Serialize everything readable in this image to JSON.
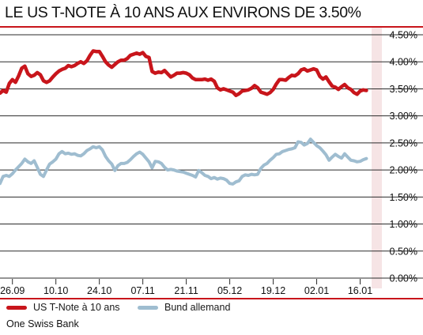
{
  "title": "LE US T-NOTE À 10 ANS AUX ENVIRONS DE 3.50%",
  "source": "One Swiss Bank",
  "colors": {
    "us": "#c8151b",
    "bund": "#9fbdd0",
    "accent_line": "#c8151b",
    "shade": "#f6e4e5",
    "grid": "#2b2b2b"
  },
  "chart_data": {
    "type": "line",
    "title": "LE US T-NOTE À 10 ANS AUX ENVIRONS DE 3.50%",
    "xlabel": "",
    "ylabel": "",
    "x_tick_labels": [
      "26.09",
      "10.10",
      "24.10",
      "07.11",
      "21.11",
      "05.12",
      "19.12",
      "02.01",
      "16.01"
    ],
    "y_tick_labels": [
      "4.50%",
      "4.00%",
      "3.50%",
      "3.00%",
      "2.50%",
      "2.00%",
      "1.50%",
      "1.00%",
      "0.50%",
      "0.00%"
    ],
    "y_ticks": [
      4.5,
      4.0,
      3.5,
      3.0,
      2.5,
      2.0,
      1.5,
      1.0,
      0.5,
      0.0
    ],
    "ylim": [
      0,
      4.5
    ],
    "x_dates": [
      "2022-09-22",
      "2023-01-23"
    ],
    "x_tick_dates": [
      "2022-09-26",
      "2022-10-10",
      "2022-10-24",
      "2022-11-07",
      "2022-11-21",
      "2022-12-05",
      "2022-12-19",
      "2023-01-02",
      "2023-01-16"
    ],
    "grid": true,
    "legend_position": "bottom-left",
    "series": [
      {
        "name": "US T-Note à 10 ans",
        "color": "#c8151b",
        "points": [
          [
            "2022-09-22",
            3.42
          ],
          [
            "2022-09-23",
            3.47
          ],
          [
            "2022-09-24",
            3.44
          ],
          [
            "2022-09-25",
            3.6
          ],
          [
            "2022-09-26",
            3.67
          ],
          [
            "2022-09-27",
            3.62
          ],
          [
            "2022-09-28",
            3.74
          ],
          [
            "2022-09-29",
            3.88
          ],
          [
            "2022-09-30",
            3.92
          ],
          [
            "2022-10-01",
            3.78
          ],
          [
            "2022-10-02",
            3.73
          ],
          [
            "2022-10-03",
            3.75
          ],
          [
            "2022-10-04",
            3.8
          ],
          [
            "2022-10-05",
            3.76
          ],
          [
            "2022-10-06",
            3.65
          ],
          [
            "2022-10-07",
            3.62
          ],
          [
            "2022-10-08",
            3.65
          ],
          [
            "2022-10-09",
            3.72
          ],
          [
            "2022-10-10",
            3.78
          ],
          [
            "2022-10-11",
            3.83
          ],
          [
            "2022-10-12",
            3.86
          ],
          [
            "2022-10-13",
            3.88
          ],
          [
            "2022-10-14",
            3.93
          ],
          [
            "2022-10-15",
            3.91
          ],
          [
            "2022-10-16",
            3.93
          ],
          [
            "2022-10-17",
            3.97
          ],
          [
            "2022-10-18",
            4.0
          ],
          [
            "2022-10-19",
            3.97
          ],
          [
            "2022-10-20",
            4.02
          ],
          [
            "2022-10-21",
            4.12
          ],
          [
            "2022-10-22",
            4.2
          ],
          [
            "2022-10-23",
            4.19
          ],
          [
            "2022-10-24",
            4.19
          ],
          [
            "2022-10-25",
            4.1
          ],
          [
            "2022-10-26",
            4.0
          ],
          [
            "2022-10-27",
            3.94
          ],
          [
            "2022-10-28",
            3.9
          ],
          [
            "2022-10-29",
            3.95
          ],
          [
            "2022-10-30",
            4.0
          ],
          [
            "2022-10-31",
            4.03
          ],
          [
            "2022-11-01",
            4.03
          ],
          [
            "2022-11-02",
            4.06
          ],
          [
            "2022-11-03",
            4.12
          ],
          [
            "2022-11-04",
            4.14
          ],
          [
            "2022-11-05",
            4.16
          ],
          [
            "2022-11-06",
            4.14
          ],
          [
            "2022-11-07",
            4.17
          ],
          [
            "2022-11-08",
            4.1
          ],
          [
            "2022-11-09",
            4.08
          ],
          [
            "2022-11-10",
            3.82
          ],
          [
            "2022-11-11",
            3.79
          ],
          [
            "2022-11-12",
            3.81
          ],
          [
            "2022-11-13",
            3.8
          ],
          [
            "2022-11-14",
            3.84
          ],
          [
            "2022-11-15",
            3.78
          ],
          [
            "2022-11-16",
            3.72
          ],
          [
            "2022-11-17",
            3.75
          ],
          [
            "2022-11-18",
            3.79
          ],
          [
            "2022-11-19",
            3.79
          ],
          [
            "2022-11-20",
            3.8
          ],
          [
            "2022-11-21",
            3.79
          ],
          [
            "2022-11-22",
            3.76
          ],
          [
            "2022-11-23",
            3.7
          ],
          [
            "2022-11-24",
            3.67
          ],
          [
            "2022-11-25",
            3.67
          ],
          [
            "2022-11-26",
            3.67
          ],
          [
            "2022-11-27",
            3.68
          ],
          [
            "2022-11-28",
            3.66
          ],
          [
            "2022-11-29",
            3.68
          ],
          [
            "2022-11-30",
            3.64
          ],
          [
            "2022-12-01",
            3.52
          ],
          [
            "2022-12-02",
            3.48
          ],
          [
            "2022-12-03",
            3.5
          ],
          [
            "2022-12-04",
            3.48
          ],
          [
            "2022-12-05",
            3.46
          ],
          [
            "2022-12-06",
            3.44
          ],
          [
            "2022-12-07",
            3.38
          ],
          [
            "2022-12-08",
            3.41
          ],
          [
            "2022-12-09",
            3.46
          ],
          [
            "2022-12-10",
            3.47
          ],
          [
            "2022-12-11",
            3.48
          ],
          [
            "2022-12-12",
            3.51
          ],
          [
            "2022-12-13",
            3.56
          ],
          [
            "2022-12-14",
            3.52
          ],
          [
            "2022-12-15",
            3.44
          ],
          [
            "2022-12-16",
            3.42
          ],
          [
            "2022-12-17",
            3.4
          ],
          [
            "2022-12-18",
            3.43
          ],
          [
            "2022-12-19",
            3.49
          ],
          [
            "2022-12-20",
            3.59
          ],
          [
            "2022-12-21",
            3.67
          ],
          [
            "2022-12-22",
            3.67
          ],
          [
            "2022-12-23",
            3.66
          ],
          [
            "2022-12-24",
            3.71
          ],
          [
            "2022-12-25",
            3.75
          ],
          [
            "2022-12-26",
            3.74
          ],
          [
            "2022-12-27",
            3.78
          ],
          [
            "2022-12-28",
            3.85
          ],
          [
            "2022-12-29",
            3.87
          ],
          [
            "2022-12-30",
            3.83
          ],
          [
            "2022-12-31",
            3.85
          ],
          [
            "2023-01-01",
            3.87
          ],
          [
            "2023-01-02",
            3.85
          ],
          [
            "2023-01-03",
            3.73
          ],
          [
            "2023-01-04",
            3.68
          ],
          [
            "2023-01-05",
            3.72
          ],
          [
            "2023-01-06",
            3.63
          ],
          [
            "2023-01-07",
            3.55
          ],
          [
            "2023-01-08",
            3.53
          ],
          [
            "2023-01-09",
            3.49
          ],
          [
            "2023-01-10",
            3.54
          ],
          [
            "2023-01-11",
            3.58
          ],
          [
            "2023-01-12",
            3.52
          ],
          [
            "2023-01-13",
            3.49
          ],
          [
            "2023-01-14",
            3.43
          ],
          [
            "2023-01-15",
            3.4
          ],
          [
            "2023-01-16",
            3.46
          ],
          [
            "2023-01-17",
            3.48
          ],
          [
            "2023-01-18",
            3.47
          ]
        ]
      },
      {
        "name": "Bund allemand",
        "color": "#9fbdd0",
        "points": [
          [
            "2022-09-22",
            1.75
          ],
          [
            "2022-09-23",
            1.88
          ],
          [
            "2022-09-24",
            1.9
          ],
          [
            "2022-09-25",
            1.88
          ],
          [
            "2022-09-26",
            1.93
          ],
          [
            "2022-09-27",
            2.0
          ],
          [
            "2022-09-28",
            2.06
          ],
          [
            "2022-09-29",
            2.12
          ],
          [
            "2022-09-30",
            2.2
          ],
          [
            "2022-10-01",
            2.15
          ],
          [
            "2022-10-02",
            2.12
          ],
          [
            "2022-10-03",
            2.17
          ],
          [
            "2022-10-04",
            2.05
          ],
          [
            "2022-10-05",
            1.92
          ],
          [
            "2022-10-06",
            1.88
          ],
          [
            "2022-10-07",
            2.0
          ],
          [
            "2022-10-08",
            2.11
          ],
          [
            "2022-10-09",
            2.15
          ],
          [
            "2022-10-10",
            2.2
          ],
          [
            "2022-10-11",
            2.3
          ],
          [
            "2022-10-12",
            2.34
          ],
          [
            "2022-10-13",
            2.3
          ],
          [
            "2022-10-14",
            2.31
          ],
          [
            "2022-10-15",
            2.29
          ],
          [
            "2022-10-16",
            2.3
          ],
          [
            "2022-10-17",
            2.27
          ],
          [
            "2022-10-18",
            2.26
          ],
          [
            "2022-10-19",
            2.3
          ],
          [
            "2022-10-20",
            2.36
          ],
          [
            "2022-10-21",
            2.39
          ],
          [
            "2022-10-22",
            2.43
          ],
          [
            "2022-10-23",
            2.41
          ],
          [
            "2022-10-24",
            2.43
          ],
          [
            "2022-10-25",
            2.37
          ],
          [
            "2022-10-26",
            2.25
          ],
          [
            "2022-10-27",
            2.17
          ],
          [
            "2022-10-28",
            2.11
          ],
          [
            "2022-10-29",
            1.99
          ],
          [
            "2022-10-30",
            2.08
          ],
          [
            "2022-10-31",
            2.12
          ],
          [
            "2022-11-01",
            2.12
          ],
          [
            "2022-11-02",
            2.14
          ],
          [
            "2022-11-03",
            2.19
          ],
          [
            "2022-11-04",
            2.25
          ],
          [
            "2022-11-05",
            2.3
          ],
          [
            "2022-11-06",
            2.33
          ],
          [
            "2022-11-07",
            2.29
          ],
          [
            "2022-11-08",
            2.22
          ],
          [
            "2022-11-09",
            2.15
          ],
          [
            "2022-11-10",
            2.04
          ],
          [
            "2022-11-11",
            2.16
          ],
          [
            "2022-11-12",
            2.15
          ],
          [
            "2022-11-13",
            2.12
          ],
          [
            "2022-11-14",
            2.05
          ],
          [
            "2022-11-15",
            2.0
          ],
          [
            "2022-11-16",
            2.01
          ],
          [
            "2022-11-17",
            2.0
          ],
          [
            "2022-11-18",
            1.98
          ],
          [
            "2022-11-19",
            1.97
          ],
          [
            "2022-11-20",
            1.96
          ],
          [
            "2022-11-21",
            1.94
          ],
          [
            "2022-11-22",
            1.92
          ],
          [
            "2022-11-23",
            1.9
          ],
          [
            "2022-11-24",
            1.87
          ],
          [
            "2022-11-25",
            1.99
          ],
          [
            "2022-11-26",
            1.95
          ],
          [
            "2022-11-27",
            1.9
          ],
          [
            "2022-11-28",
            1.88
          ],
          [
            "2022-11-29",
            1.84
          ],
          [
            "2022-11-30",
            1.86
          ],
          [
            "2022-12-01",
            1.83
          ],
          [
            "2022-12-02",
            1.85
          ],
          [
            "2022-12-03",
            1.84
          ],
          [
            "2022-12-04",
            1.81
          ],
          [
            "2022-12-05",
            1.75
          ],
          [
            "2022-12-06",
            1.74
          ],
          [
            "2022-12-07",
            1.78
          ],
          [
            "2022-12-08",
            1.8
          ],
          [
            "2022-12-09",
            1.88
          ],
          [
            "2022-12-10",
            1.91
          ],
          [
            "2022-12-11",
            1.9
          ],
          [
            "2022-12-12",
            1.92
          ],
          [
            "2022-12-13",
            1.91
          ],
          [
            "2022-12-14",
            1.92
          ],
          [
            "2022-12-15",
            2.03
          ],
          [
            "2022-12-16",
            2.09
          ],
          [
            "2022-12-17",
            2.12
          ],
          [
            "2022-12-18",
            2.18
          ],
          [
            "2022-12-19",
            2.23
          ],
          [
            "2022-12-20",
            2.29
          ],
          [
            "2022-12-21",
            2.3
          ],
          [
            "2022-12-22",
            2.34
          ],
          [
            "2022-12-23",
            2.36
          ],
          [
            "2022-12-24",
            2.38
          ],
          [
            "2022-12-25",
            2.39
          ],
          [
            "2022-12-26",
            2.41
          ],
          [
            "2022-12-27",
            2.52
          ],
          [
            "2022-12-28",
            2.51
          ],
          [
            "2022-12-29",
            2.46
          ],
          [
            "2022-12-30",
            2.49
          ],
          [
            "2022-12-31",
            2.57
          ],
          [
            "2023-01-01",
            2.51
          ],
          [
            "2023-01-02",
            2.45
          ],
          [
            "2023-01-03",
            2.41
          ],
          [
            "2023-01-04",
            2.35
          ],
          [
            "2023-01-05",
            2.28
          ],
          [
            "2023-01-06",
            2.18
          ],
          [
            "2023-01-07",
            2.24
          ],
          [
            "2023-01-08",
            2.29
          ],
          [
            "2023-01-09",
            2.25
          ],
          [
            "2023-01-10",
            2.22
          ],
          [
            "2023-01-11",
            2.3
          ],
          [
            "2023-01-12",
            2.24
          ],
          [
            "2023-01-13",
            2.18
          ],
          [
            "2023-01-14",
            2.17
          ],
          [
            "2023-01-15",
            2.15
          ],
          [
            "2023-01-16",
            2.16
          ],
          [
            "2023-01-17",
            2.19
          ],
          [
            "2023-01-18",
            2.21
          ]
        ]
      }
    ]
  }
}
